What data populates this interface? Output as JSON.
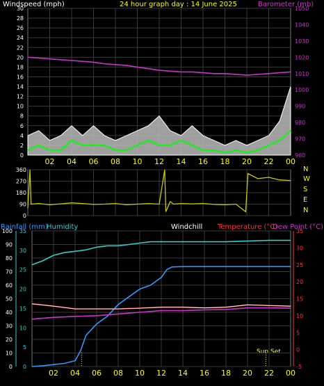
{
  "top": {
    "windspeed_label": "Windspeed (mph)",
    "title": "24 hour graph day : 14 June 2025",
    "barometer_label": "Barometer (mb)"
  },
  "direction": {
    "compass_labels": [
      "N",
      "W",
      "S",
      "E",
      "N"
    ]
  },
  "bottom": {
    "rainfall_label": "Rainfall (mm)",
    "humidity_label": "Humidity",
    "windchill_label": "Windchill",
    "temperature_label": "Temperature (°C)",
    "dewpoint_label": "Dew Point (°C)",
    "sunset_label": "Sun Set"
  },
  "colors": {
    "gust": "#ffffff",
    "average": "#00ff00",
    "pressure": "#cc33cc",
    "direction": "#cccc00",
    "rainfall": "#3399ff",
    "humidity": "#33cccc",
    "temperature": "#ff3333",
    "dewpoint": "#cc33cc",
    "windchill": "#ffffff",
    "axis_yellow": "#ffff00",
    "axis_magenta": "#cc33cc",
    "axis_red": "#ff3333",
    "axis_cyan": "#33cccc"
  },
  "chart_data": [
    {
      "type": "line",
      "panel": "wind_pressure",
      "x_ticks": [
        "02",
        "04",
        "06",
        "08",
        "10",
        "12",
        "14",
        "16",
        "18",
        "20",
        "22",
        "00"
      ],
      "x_hours": [
        0,
        1,
        2,
        3,
        4,
        5,
        6,
        7,
        8,
        9,
        10,
        11,
        12,
        13,
        14,
        15,
        16,
        17,
        18,
        19,
        20,
        21,
        22,
        23,
        24
      ],
      "ylim_left": [
        0,
        30
      ],
      "yticks_left": [
        0,
        2,
        4,
        6,
        8,
        10,
        12,
        14,
        16,
        18,
        20,
        22,
        24,
        26,
        28,
        30
      ],
      "ylim_right": [
        960,
        1050
      ],
      "yticks_right": [
        960,
        970,
        980,
        990,
        1000,
        1010,
        1020,
        1030,
        1040,
        1050
      ],
      "series": [
        {
          "name": "Windspeed (mph)",
          "values": [
            4,
            5,
            3,
            4,
            6,
            4,
            6,
            4,
            3,
            4,
            5,
            6,
            8,
            5,
            4,
            6,
            4,
            3,
            2,
            3,
            2,
            3,
            4,
            7,
            14
          ]
        },
        {
          "name": "",
          "values": [
            1,
            2,
            1,
            1,
            3,
            2,
            2,
            2,
            1,
            1,
            2,
            3,
            2,
            2,
            3,
            2,
            1,
            1,
            0.5,
            1,
            0.5,
            1,
            2,
            3,
            5
          ]
        },
        {
          "name": "Barometer (mb)",
          "values": [
            1020,
            1019.5,
            1019,
            1018.5,
            1018,
            1017.5,
            1017,
            1016,
            1015.5,
            1015,
            1014,
            1013,
            1012,
            1011.5,
            1011,
            1011,
            1010.5,
            1010,
            1010,
            1009.5,
            1009,
            1009.5,
            1010,
            1010.5,
            1011
          ]
        }
      ]
    },
    {
      "type": "line",
      "panel": "wind_direction",
      "x_ticks": [
        "02",
        "04",
        "06",
        "08",
        "10",
        "12",
        "14",
        "16",
        "18",
        "20",
        "22",
        "00"
      ],
      "ylim": [
        0,
        360
      ],
      "yticks": [
        0,
        90,
        180,
        270,
        360
      ],
      "series": [
        {
          "name": "",
          "x": [
            0,
            0.2,
            0.3,
            1,
            2,
            3,
            4,
            5,
            6,
            7,
            8,
            9,
            10,
            11,
            12,
            12.5,
            12.6,
            13,
            13.3,
            14,
            15,
            16,
            17,
            18,
            19,
            19.9,
            20.1,
            21,
            22,
            23,
            24
          ],
          "values": [
            60,
            360,
            90,
            95,
            85,
            92,
            100,
            95,
            88,
            90,
            95,
            85,
            90,
            95,
            90,
            360,
            30,
            110,
            90,
            95,
            92,
            95,
            88,
            85,
            90,
            30,
            330,
            290,
            300,
            280,
            275
          ]
        }
      ]
    },
    {
      "type": "line",
      "panel": "rain_humidity_temperature",
      "x_ticks": [
        "02",
        "04",
        "06",
        "08",
        "10",
        "12",
        "14",
        "16",
        "18",
        "20",
        "22",
        "00"
      ],
      "ylim_rain": [
        0,
        35
      ],
      "yticks_rain": [
        0,
        5,
        10,
        15,
        20,
        25,
        30,
        35
      ],
      "ylim_humidity": [
        0,
        100
      ],
      "yticks_humidity": [
        0,
        10,
        20,
        30,
        40,
        50,
        60,
        70,
        80,
        90,
        100
      ],
      "ylim_temperature": [
        -5,
        35
      ],
      "yticks_temperature": [
        -5,
        0,
        5,
        10,
        15,
        20,
        25,
        30,
        35
      ],
      "series": [
        {
          "name": "Rainfall (mm)",
          "x": [
            0,
            1,
            2,
            3,
            4,
            4.5,
            5,
            6,
            7,
            8,
            9,
            10,
            11,
            11.5,
            12,
            12.5,
            13,
            14,
            16,
            20,
            24
          ],
          "values": [
            0,
            0.2,
            0.5,
            0.8,
            1.5,
            4,
            8,
            11,
            13,
            16,
            18,
            20,
            21,
            22,
            23,
            25,
            25.7,
            25.8,
            25.8,
            25.8,
            25.8
          ]
        },
        {
          "name": "Humidity",
          "x": [
            0,
            1,
            2,
            3,
            4,
            5,
            6,
            7,
            8,
            9,
            10,
            11,
            12,
            13,
            14,
            16,
            18,
            20,
            22,
            24
          ],
          "values": [
            75,
            78,
            82,
            84,
            85,
            86,
            88,
            89,
            89,
            90,
            91,
            92,
            92,
            92,
            92,
            92,
            92,
            92.5,
            93,
            93
          ]
        },
        {
          "name": "Temperature (°C)",
          "x": [
            0,
            2,
            4,
            6,
            8,
            10,
            12,
            14,
            16,
            18,
            20,
            22,
            24
          ],
          "values": [
            13.5,
            12.8,
            12,
            12,
            12,
            12.2,
            12.5,
            12.5,
            12.3,
            12.5,
            13.2,
            13,
            12.8
          ]
        },
        {
          "name": "Dew Point (°C)",
          "x": [
            0,
            2,
            4,
            6,
            8,
            10,
            12,
            14,
            16,
            18,
            20,
            22,
            24
          ],
          "values": [
            9,
            9.5,
            9.8,
            10,
            10.5,
            11,
            11.5,
            11.5,
            11.7,
            11.8,
            12.3,
            12.3,
            12.2
          ]
        },
        {
          "name": "Windchill",
          "x": [
            0,
            2,
            4,
            6,
            8,
            10,
            12,
            14,
            16,
            18,
            20,
            22,
            24
          ],
          "values": [
            13.5,
            12.8,
            12,
            12,
            12,
            12.2,
            12.5,
            12.5,
            12.3,
            12.5,
            13.2,
            13,
            12.8
          ]
        }
      ],
      "markers": [
        {
          "hour": 4.6
        },
        {
          "hour": 21.7
        }
      ]
    }
  ]
}
